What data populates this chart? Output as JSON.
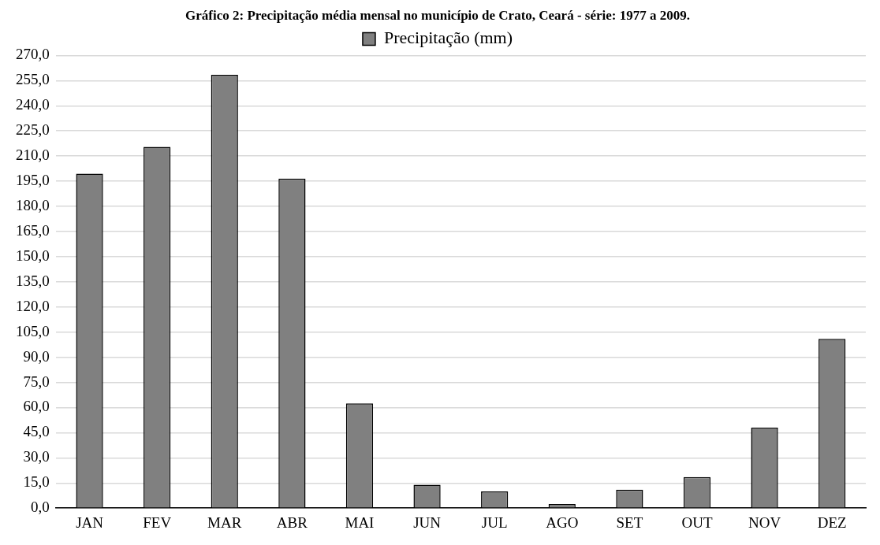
{
  "chart_data": {
    "type": "bar",
    "title": "Gráfico 2: Precipitação média mensal no município de Crato, Ceará - série: 1977 a 2009.",
    "categories": [
      "JAN",
      "FEV",
      "MAR",
      "ABR",
      "MAI",
      "JUN",
      "JUL",
      "AGO",
      "SET",
      "OUT",
      "NOV",
      "DEZ"
    ],
    "series": [
      {
        "name": "Precipitação (mm)",
        "color": "#808080",
        "values": [
          199.5,
          215.5,
          258.5,
          196.5,
          62.5,
          14,
          10,
          2.5,
          11,
          18.5,
          48,
          101
        ]
      }
    ],
    "ylim": [
      0,
      270
    ],
    "yticks": [
      {
        "value": 0,
        "label": "0,0"
      },
      {
        "value": 15,
        "label": "15,0"
      },
      {
        "value": 30,
        "label": "30,0"
      },
      {
        "value": 45,
        "label": "45,0"
      },
      {
        "value": 60,
        "label": "60,0"
      },
      {
        "value": 75,
        "label": "75,0"
      },
      {
        "value": 90,
        "label": "90,0"
      },
      {
        "value": 105,
        "label": "105,0"
      },
      {
        "value": 120,
        "label": "120,0"
      },
      {
        "value": 135,
        "label": "135,0"
      },
      {
        "value": 150,
        "label": "150,0"
      },
      {
        "value": 165,
        "label": "165,0"
      },
      {
        "value": 180,
        "label": "180,0"
      },
      {
        "value": 195,
        "label": "195,0"
      },
      {
        "value": 210,
        "label": "210,0"
      },
      {
        "value": 225,
        "label": "225,0"
      },
      {
        "value": 240,
        "label": "240,0"
      },
      {
        "value": 255,
        "label": "255,0"
      },
      {
        "value": 270,
        "label": "270,0"
      }
    ],
    "grid": "y",
    "legend": "top"
  }
}
